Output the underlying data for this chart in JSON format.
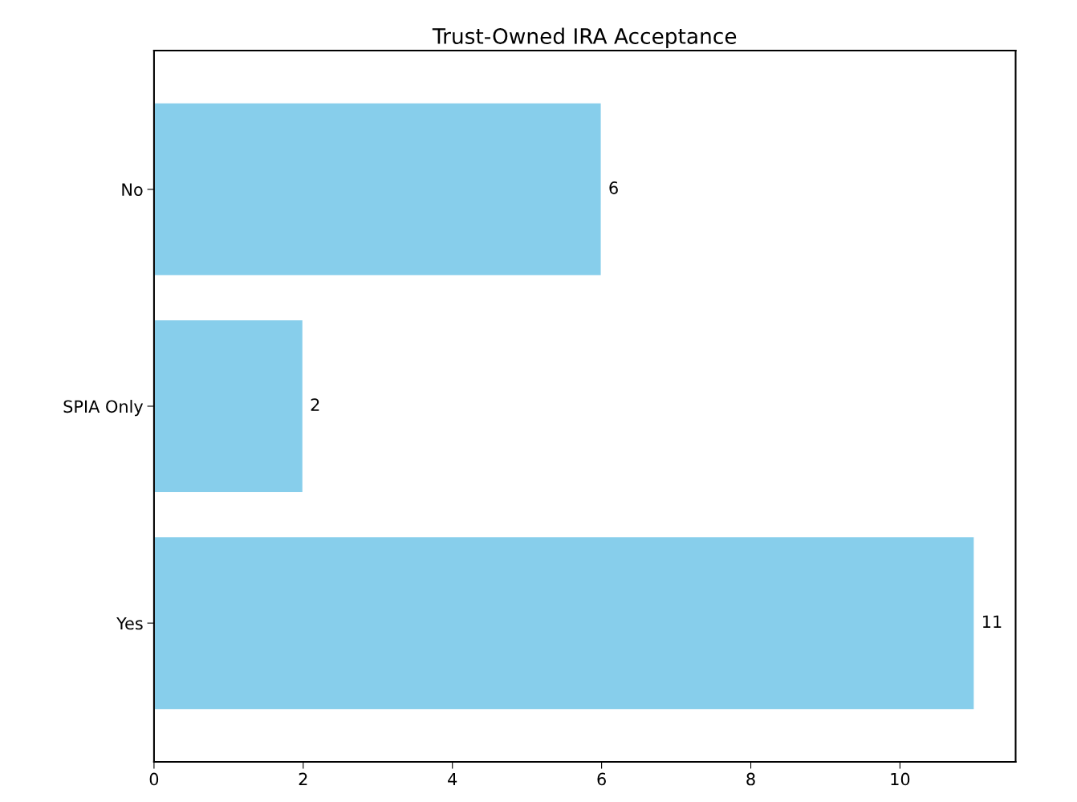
{
  "chart_data": {
    "type": "bar",
    "orientation": "horizontal",
    "title": "Trust-Owned IRA Acceptance",
    "categories": [
      "No",
      "SPIA Only",
      "Yes"
    ],
    "values": [
      6,
      2,
      11
    ],
    "color": "#87ceeb",
    "xlim": [
      0,
      11.55
    ],
    "xticks": [
      0,
      2,
      4,
      6,
      8,
      10
    ],
    "data_labels": true,
    "grid": false,
    "legend": false
  }
}
